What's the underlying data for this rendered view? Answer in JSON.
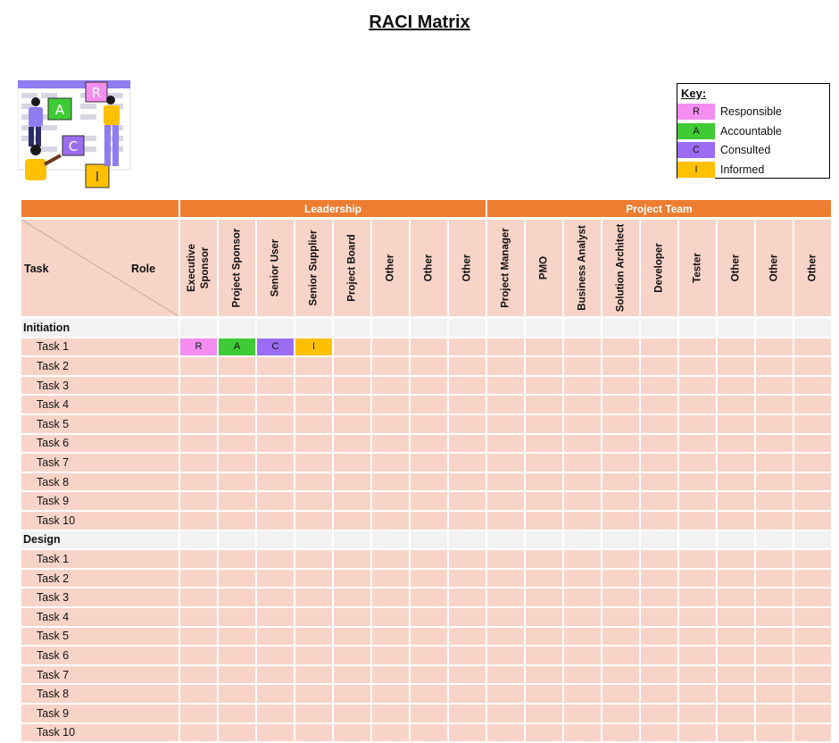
{
  "title": "RACI Matrix",
  "key": {
    "heading": "Key:",
    "items": [
      {
        "letter": "R",
        "label": "Responsible",
        "color": "#f48df0"
      },
      {
        "letter": "A",
        "label": "Accountable",
        "color": "#3fcb35"
      },
      {
        "letter": "C",
        "label": "Consulted",
        "color": "#9b6cf2"
      },
      {
        "letter": "I",
        "label": "Informed",
        "color": "#ffc000"
      }
    ]
  },
  "groups": [
    {
      "name": "Leadership"
    },
    {
      "name": "Project Team"
    }
  ],
  "header": {
    "task": "Task",
    "role": "Role"
  },
  "roles": [
    "Executive\nSponsor",
    "Project Sponsor",
    "Senior User",
    "Senior Supplier",
    "Project Board",
    "Other",
    "Other",
    "Other",
    "Project Manager",
    "PMO",
    "Business Analyst",
    "Solution Architect",
    "Developer",
    "Tester",
    "Other",
    "Other",
    "Other"
  ],
  "sections": [
    {
      "name": "Initiation",
      "tasks": [
        {
          "name": "Task 1",
          "assignments": [
            "R",
            "A",
            "C",
            "I"
          ]
        },
        {
          "name": "Task 2",
          "assignments": []
        },
        {
          "name": "Task 3",
          "assignments": []
        },
        {
          "name": "Task 4",
          "assignments": []
        },
        {
          "name": "Task 5",
          "assignments": []
        },
        {
          "name": "Task 6",
          "assignments": []
        },
        {
          "name": "Task 7",
          "assignments": []
        },
        {
          "name": "Task 8",
          "assignments": []
        },
        {
          "name": "Task 9",
          "assignments": []
        },
        {
          "name": "Task 10",
          "assignments": []
        }
      ]
    },
    {
      "name": "Design",
      "tasks": [
        {
          "name": "Task 1",
          "assignments": []
        },
        {
          "name": "Task 2",
          "assignments": []
        },
        {
          "name": "Task 3",
          "assignments": []
        },
        {
          "name": "Task 4",
          "assignments": []
        },
        {
          "name": "Task 5",
          "assignments": []
        },
        {
          "name": "Task 6",
          "assignments": []
        },
        {
          "name": "Task 7",
          "assignments": []
        },
        {
          "name": "Task 8",
          "assignments": []
        },
        {
          "name": "Task 9",
          "assignments": []
        },
        {
          "name": "Task 10",
          "assignments": []
        }
      ]
    }
  ]
}
